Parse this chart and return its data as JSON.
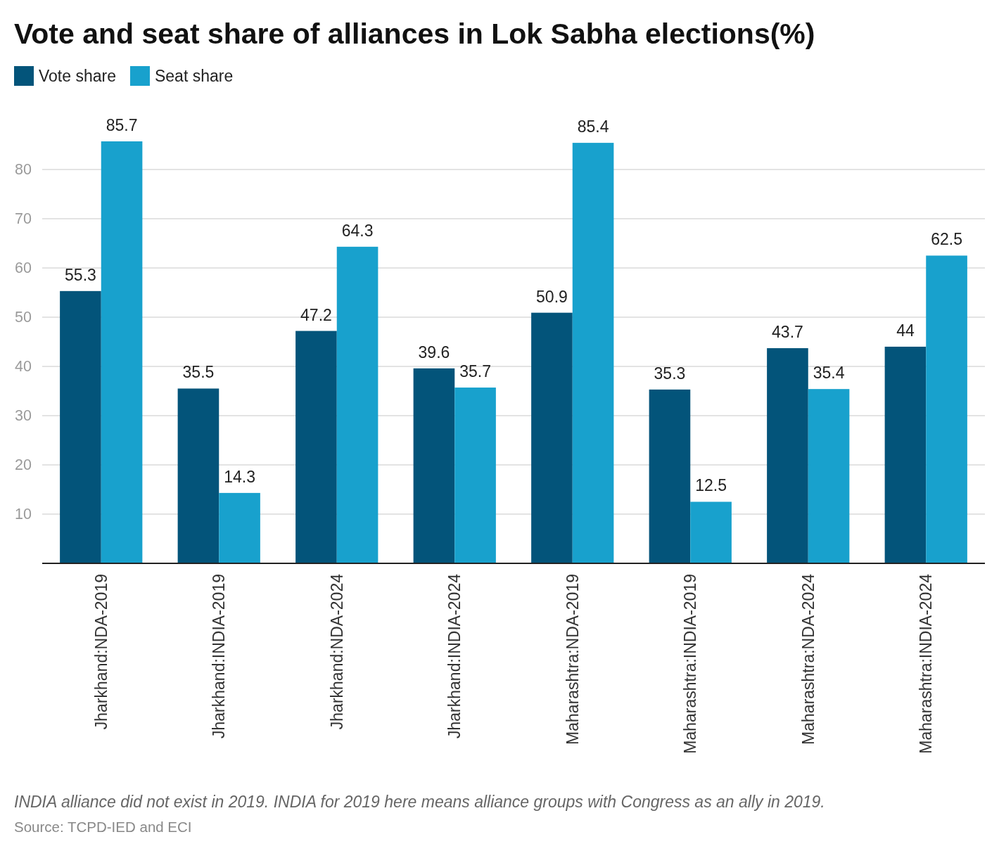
{
  "chart_data": {
    "type": "bar",
    "title": "Vote and seat share of alliances in Lok Sabha elections(%)",
    "categories": [
      "Jharkhand:NDA-2019",
      "Jharkhand:INDIA-2019",
      "Jharkhand:NDA-2024",
      "Jharkhand:INDIA-2024",
      "Maharashtra:NDA-2019",
      "Maharashtra:INDIA-2019",
      "Maharashtra:NDA-2024",
      "Maharashtra:INDIA-2024"
    ],
    "series": [
      {
        "name": "Vote share",
        "color": "#03547a",
        "values": [
          55.3,
          35.5,
          47.2,
          39.6,
          50.9,
          35.3,
          43.7,
          44
        ]
      },
      {
        "name": "Seat share",
        "color": "#18a1cd",
        "values": [
          85.7,
          14.3,
          64.3,
          35.7,
          85.4,
          12.5,
          35.4,
          62.5
        ]
      }
    ],
    "ylim": [
      0,
      85.7
    ],
    "yticks": [
      10,
      20,
      30,
      40,
      50,
      60,
      70,
      80
    ],
    "grid": "y",
    "legend": "top left",
    "data_labels": true,
    "annotations": [
      "INDIA alliance did not exist in 2019. INDIA for 2019 here means alliance groups with Congress as an ally in 2019.",
      "Source: TCPD-IED and ECI"
    ]
  }
}
